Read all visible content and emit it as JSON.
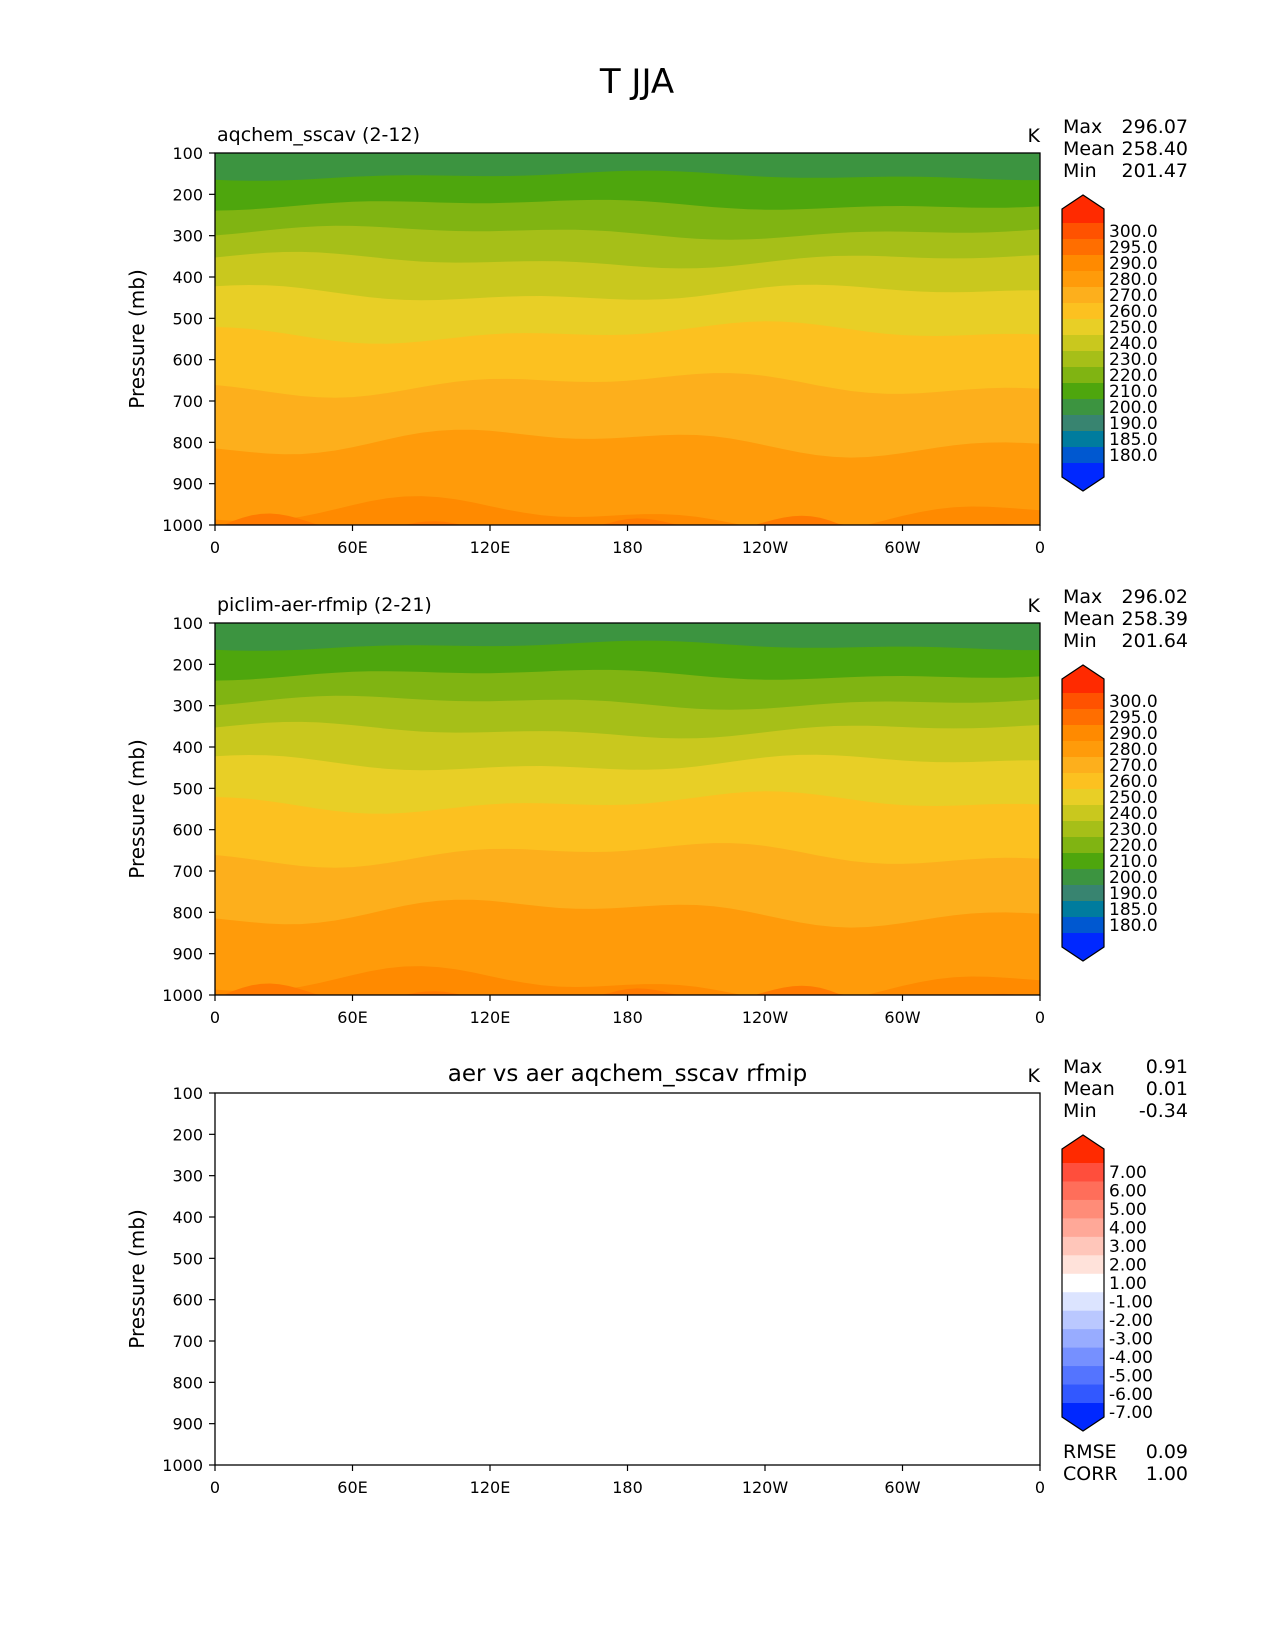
{
  "figure": {
    "title": "T JJA"
  },
  "chart_data": [
    {
      "type": "heatmap",
      "panel_title": "aqchem_sscav (2-12)",
      "units": "K",
      "ylabel": "Pressure (mb)",
      "y_ticks": [
        "100",
        "200",
        "300",
        "400",
        "500",
        "600",
        "700",
        "800",
        "900",
        "1000"
      ],
      "ylim": [
        100,
        1000
      ],
      "x_ticks": [
        "0",
        "60E",
        "120E",
        "180",
        "120W",
        "60W",
        "0"
      ],
      "xlim": [
        0,
        360
      ],
      "stats": [
        {
          "label": "Max",
          "value": "296.07"
        },
        {
          "label": "Mean",
          "value": "258.40"
        },
        {
          "label": "Min",
          "value": "201.47"
        }
      ],
      "colorbar": {
        "labels": [
          "300.0",
          "295.0",
          "290.0",
          "280.0",
          "270.0",
          "260.0",
          "250.0",
          "240.0",
          "230.0",
          "220.0",
          "210.0",
          "200.0",
          "190.0",
          "185.0",
          "180.0"
        ],
        "colors": [
          "#ff2a00",
          "#ff5200",
          "#ff6e00",
          "#ff8a00",
          "#ff9b0a",
          "#fdaf1c",
          "#fcc120",
          "#e8cf26",
          "#c9c81e",
          "#a6bf18",
          "#80b412",
          "#4ea60d",
          "#3c9440",
          "#388470",
          "#007c9e",
          "#0058d0",
          "#0028ff"
        ]
      },
      "bands": [
        {
          "t": 100,
          "color": "#3c9440"
        },
        {
          "t": 155,
          "color": "#4ea60d"
        },
        {
          "t": 225,
          "color": "#80b412"
        },
        {
          "t": 292,
          "color": "#a6bf18"
        },
        {
          "t": 360,
          "color": "#c9c81e"
        },
        {
          "t": 440,
          "color": "#e8cf26"
        },
        {
          "t": 535,
          "color": "#fcc120"
        },
        {
          "t": 660,
          "color": "#fdaf1c"
        },
        {
          "t": 800,
          "color": "#ff9b0a"
        },
        {
          "t": 975,
          "color": "#ff8a00"
        }
      ]
    },
    {
      "type": "heatmap",
      "panel_title": "piclim-aer-rfmip (2-21)",
      "units": "K",
      "ylabel": "Pressure (mb)",
      "y_ticks": [
        "100",
        "200",
        "300",
        "400",
        "500",
        "600",
        "700",
        "800",
        "900",
        "1000"
      ],
      "ylim": [
        100,
        1000
      ],
      "x_ticks": [
        "0",
        "60E",
        "120E",
        "180",
        "120W",
        "60W",
        "0"
      ],
      "xlim": [
        0,
        360
      ],
      "stats": [
        {
          "label": "Max",
          "value": "296.02"
        },
        {
          "label": "Mean",
          "value": "258.39"
        },
        {
          "label": "Min",
          "value": "201.64"
        }
      ],
      "colorbar": {
        "labels": [
          "300.0",
          "295.0",
          "290.0",
          "280.0",
          "270.0",
          "260.0",
          "250.0",
          "240.0",
          "230.0",
          "220.0",
          "210.0",
          "200.0",
          "190.0",
          "185.0",
          "180.0"
        ],
        "colors": [
          "#ff2a00",
          "#ff5200",
          "#ff6e00",
          "#ff8a00",
          "#ff9b0a",
          "#fdaf1c",
          "#fcc120",
          "#e8cf26",
          "#c9c81e",
          "#a6bf18",
          "#80b412",
          "#4ea60d",
          "#3c9440",
          "#388470",
          "#007c9e",
          "#0058d0",
          "#0028ff"
        ]
      },
      "bands": [
        {
          "t": 100,
          "color": "#3c9440"
        },
        {
          "t": 155,
          "color": "#4ea60d"
        },
        {
          "t": 225,
          "color": "#80b412"
        },
        {
          "t": 292,
          "color": "#a6bf18"
        },
        {
          "t": 360,
          "color": "#c9c81e"
        },
        {
          "t": 440,
          "color": "#e8cf26"
        },
        {
          "t": 535,
          "color": "#fcc120"
        },
        {
          "t": 660,
          "color": "#fdaf1c"
        },
        {
          "t": 800,
          "color": "#ff9b0a"
        },
        {
          "t": 975,
          "color": "#ff8a00"
        }
      ]
    },
    {
      "type": "heatmap",
      "panel_title": "aer vs aer aqchem_sscav rfmip",
      "units": "K",
      "ylabel": "Pressure (mb)",
      "y_ticks": [
        "100",
        "200",
        "300",
        "400",
        "500",
        "600",
        "700",
        "800",
        "900",
        "1000"
      ],
      "ylim": [
        100,
        1000
      ],
      "x_ticks": [
        "0",
        "60E",
        "120E",
        "180",
        "120W",
        "60W",
        "0"
      ],
      "xlim": [
        0,
        360
      ],
      "stats": [
        {
          "label": "Max",
          "value": "0.91"
        },
        {
          "label": "Mean",
          "value": "0.01"
        },
        {
          "label": "Min",
          "value": "-0.34"
        }
      ],
      "extra_stats": [
        {
          "label": "RMSE",
          "value": "0.09"
        },
        {
          "label": "CORR",
          "value": "1.00"
        }
      ],
      "colorbar": {
        "labels": [
          "7.00",
          "6.00",
          "5.00",
          "4.00",
          "3.00",
          "2.00",
          "1.00",
          "-1.00",
          "-2.00",
          "-3.00",
          "-4.00",
          "-5.00",
          "-6.00",
          "-7.00"
        ],
        "colors": [
          "#ff2a00",
          "#ff4e3c",
          "#ff6e5a",
          "#ff8c78",
          "#ffa898",
          "#ffc6ba",
          "#ffe2da",
          "#ffffff",
          "#dce4ff",
          "#bac8ff",
          "#98acff",
          "#7690ff",
          "#5474ff",
          "#3258ff",
          "#0028ff"
        ]
      },
      "bands": []
    }
  ]
}
